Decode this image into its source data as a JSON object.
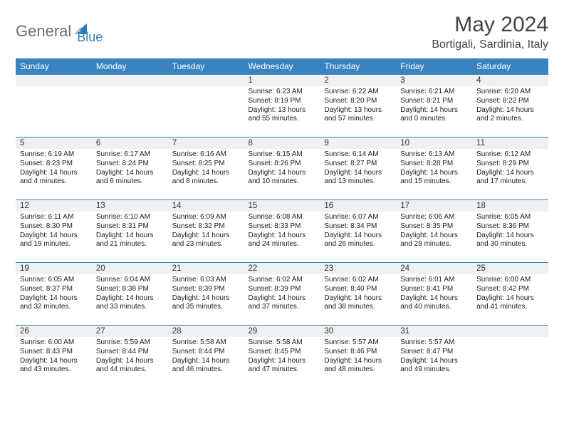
{
  "logo": {
    "part1": "General",
    "part2": "Blue",
    "shape_color": "#2f77b6"
  },
  "title": "May 2024",
  "location": "Bortigali, Sardinia, Italy",
  "colors": {
    "header_bg": "#3b83c0",
    "header_text": "#ffffff",
    "daynum_bg": "#eef0f1",
    "row_border": "#3b83c0",
    "text": "#222222"
  },
  "fonts": {
    "title_size": 30,
    "location_size": 16,
    "weekday_size": 12,
    "daynum_size": 11.5,
    "body_size": 10
  },
  "weekdays": [
    "Sunday",
    "Monday",
    "Tuesday",
    "Wednesday",
    "Thursday",
    "Friday",
    "Saturday"
  ],
  "weeks": [
    [
      null,
      null,
      null,
      {
        "n": "1",
        "sunrise": "6:23 AM",
        "sunset": "8:19 PM",
        "daylight": "13 hours and 55 minutes."
      },
      {
        "n": "2",
        "sunrise": "6:22 AM",
        "sunset": "8:20 PM",
        "daylight": "13 hours and 57 minutes."
      },
      {
        "n": "3",
        "sunrise": "6:21 AM",
        "sunset": "8:21 PM",
        "daylight": "14 hours and 0 minutes."
      },
      {
        "n": "4",
        "sunrise": "6:20 AM",
        "sunset": "8:22 PM",
        "daylight": "14 hours and 2 minutes."
      }
    ],
    [
      {
        "n": "5",
        "sunrise": "6:19 AM",
        "sunset": "8:23 PM",
        "daylight": "14 hours and 4 minutes."
      },
      {
        "n": "6",
        "sunrise": "6:17 AM",
        "sunset": "8:24 PM",
        "daylight": "14 hours and 6 minutes."
      },
      {
        "n": "7",
        "sunrise": "6:16 AM",
        "sunset": "8:25 PM",
        "daylight": "14 hours and 8 minutes."
      },
      {
        "n": "8",
        "sunrise": "6:15 AM",
        "sunset": "8:26 PM",
        "daylight": "14 hours and 10 minutes."
      },
      {
        "n": "9",
        "sunrise": "6:14 AM",
        "sunset": "8:27 PM",
        "daylight": "14 hours and 13 minutes."
      },
      {
        "n": "10",
        "sunrise": "6:13 AM",
        "sunset": "8:28 PM",
        "daylight": "14 hours and 15 minutes."
      },
      {
        "n": "11",
        "sunrise": "6:12 AM",
        "sunset": "8:29 PM",
        "daylight": "14 hours and 17 minutes."
      }
    ],
    [
      {
        "n": "12",
        "sunrise": "6:11 AM",
        "sunset": "8:30 PM",
        "daylight": "14 hours and 19 minutes."
      },
      {
        "n": "13",
        "sunrise": "6:10 AM",
        "sunset": "8:31 PM",
        "daylight": "14 hours and 21 minutes."
      },
      {
        "n": "14",
        "sunrise": "6:09 AM",
        "sunset": "8:32 PM",
        "daylight": "14 hours and 23 minutes."
      },
      {
        "n": "15",
        "sunrise": "6:08 AM",
        "sunset": "8:33 PM",
        "daylight": "14 hours and 24 minutes."
      },
      {
        "n": "16",
        "sunrise": "6:07 AM",
        "sunset": "8:34 PM",
        "daylight": "14 hours and 26 minutes."
      },
      {
        "n": "17",
        "sunrise": "6:06 AM",
        "sunset": "8:35 PM",
        "daylight": "14 hours and 28 minutes."
      },
      {
        "n": "18",
        "sunrise": "6:05 AM",
        "sunset": "8:36 PM",
        "daylight": "14 hours and 30 minutes."
      }
    ],
    [
      {
        "n": "19",
        "sunrise": "6:05 AM",
        "sunset": "8:37 PM",
        "daylight": "14 hours and 32 minutes."
      },
      {
        "n": "20",
        "sunrise": "6:04 AM",
        "sunset": "8:38 PM",
        "daylight": "14 hours and 33 minutes."
      },
      {
        "n": "21",
        "sunrise": "6:03 AM",
        "sunset": "8:39 PM",
        "daylight": "14 hours and 35 minutes."
      },
      {
        "n": "22",
        "sunrise": "6:02 AM",
        "sunset": "8:39 PM",
        "daylight": "14 hours and 37 minutes."
      },
      {
        "n": "23",
        "sunrise": "6:02 AM",
        "sunset": "8:40 PM",
        "daylight": "14 hours and 38 minutes."
      },
      {
        "n": "24",
        "sunrise": "6:01 AM",
        "sunset": "8:41 PM",
        "daylight": "14 hours and 40 minutes."
      },
      {
        "n": "25",
        "sunrise": "6:00 AM",
        "sunset": "8:42 PM",
        "daylight": "14 hours and 41 minutes."
      }
    ],
    [
      {
        "n": "26",
        "sunrise": "6:00 AM",
        "sunset": "8:43 PM",
        "daylight": "14 hours and 43 minutes."
      },
      {
        "n": "27",
        "sunrise": "5:59 AM",
        "sunset": "8:44 PM",
        "daylight": "14 hours and 44 minutes."
      },
      {
        "n": "28",
        "sunrise": "5:58 AM",
        "sunset": "8:44 PM",
        "daylight": "14 hours and 46 minutes."
      },
      {
        "n": "29",
        "sunrise": "5:58 AM",
        "sunset": "8:45 PM",
        "daylight": "14 hours and 47 minutes."
      },
      {
        "n": "30",
        "sunrise": "5:57 AM",
        "sunset": "8:46 PM",
        "daylight": "14 hours and 48 minutes."
      },
      {
        "n": "31",
        "sunrise": "5:57 AM",
        "sunset": "8:47 PM",
        "daylight": "14 hours and 49 minutes."
      },
      null
    ]
  ],
  "labels": {
    "sunrise": "Sunrise: ",
    "sunset": "Sunset: ",
    "daylight": "Daylight: "
  }
}
